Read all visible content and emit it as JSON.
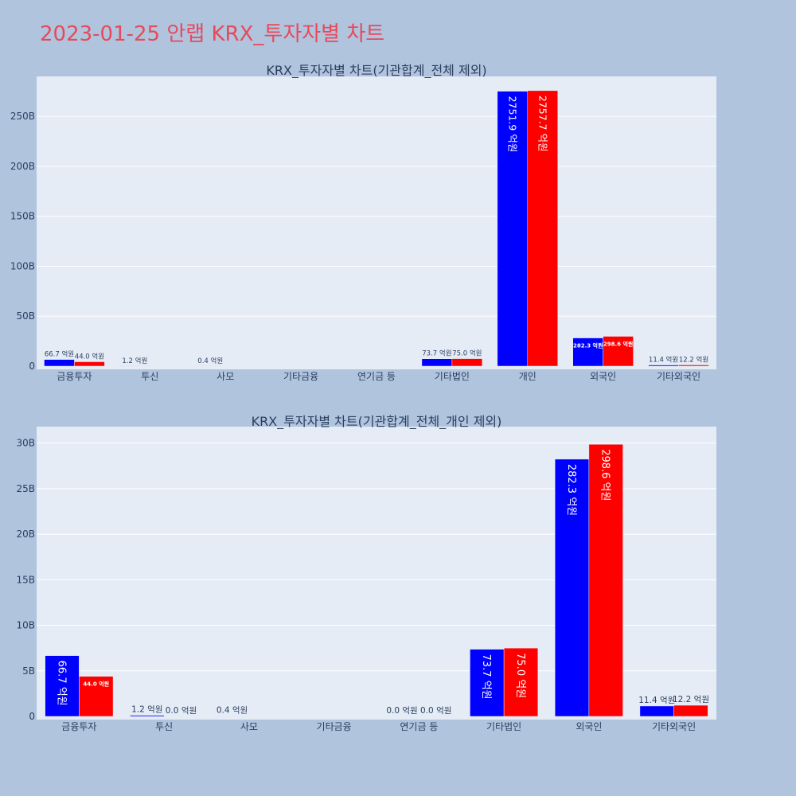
{
  "title": "2023-01-25 안랩 KRX_투자자별 차트",
  "colors": {
    "buy": "#0000ff",
    "sell": "#ff0000",
    "plot_bg": "#e5ecf6",
    "page_bg": "#b0c4de",
    "title": "#e8495a"
  },
  "chart_data": [
    {
      "type": "bar",
      "title": "KRX_투자자별 차트(기관합계_전체 제외)",
      "categories": [
        "금융투자",
        "투신",
        "사모",
        "기타금융",
        "연기금 등",
        "기타법인",
        "개인",
        "외국인",
        "기타외국인"
      ],
      "series": [
        {
          "values": [
            6.67,
            0.12,
            0.04,
            0,
            0,
            7.37,
            275.19,
            28.23,
            1.14
          ],
          "labels": [
            "66.7 억원",
            "1.2 억원",
            "0.4 억원",
            "",
            "",
            "73.7 억원",
            "2751.9 억원",
            "282.3 억원",
            "11.4 억원"
          ]
        },
        {
          "values": [
            4.4,
            0,
            0,
            0,
            0,
            7.5,
            275.77,
            29.86,
            1.22
          ],
          "labels": [
            "44.0 억원",
            "",
            "",
            "",
            "",
            "75.0 억원",
            "2757.7 억원",
            "298.6 억원",
            "12.2 억원"
          ]
        }
      ],
      "ylim": [
        0,
        290
      ],
      "yticks": [
        0,
        50,
        100,
        150,
        200,
        250
      ],
      "ytick_labels": [
        "0",
        "50B",
        "100B",
        "150B",
        "200B",
        "250B"
      ],
      "grid": true
    },
    {
      "type": "bar",
      "title": "KRX_투자자별 차트(기관합계_전체_개인 제외)",
      "categories": [
        "금융투자",
        "투신",
        "사모",
        "기타금융",
        "연기금 등",
        "기타법인",
        "외국인",
        "기타외국인"
      ],
      "series": [
        {
          "values": [
            6.67,
            0.12,
            0.04,
            0,
            0,
            7.37,
            28.23,
            1.14
          ],
          "labels": [
            "66.7 억원",
            "1.2 억원",
            "0.4 억원",
            "",
            "0.0 억원",
            "73.7 억원",
            "282.3 억원",
            "11.4 억원"
          ]
        },
        {
          "values": [
            4.4,
            0,
            0,
            0,
            0,
            7.5,
            29.86,
            1.22
          ],
          "labels": [
            "44.0 억원",
            "0.0 억원",
            "",
            "",
            "0.0 억원",
            "75.0 억원",
            "298.6 억원",
            "12.2 억원"
          ]
        }
      ],
      "ylim": [
        0,
        31.8
      ],
      "yticks": [
        0,
        5,
        10,
        15,
        20,
        25,
        30
      ],
      "ytick_labels": [
        "0",
        "5B",
        "10B",
        "15B",
        "20B",
        "25B",
        "30B"
      ],
      "grid": true
    }
  ]
}
